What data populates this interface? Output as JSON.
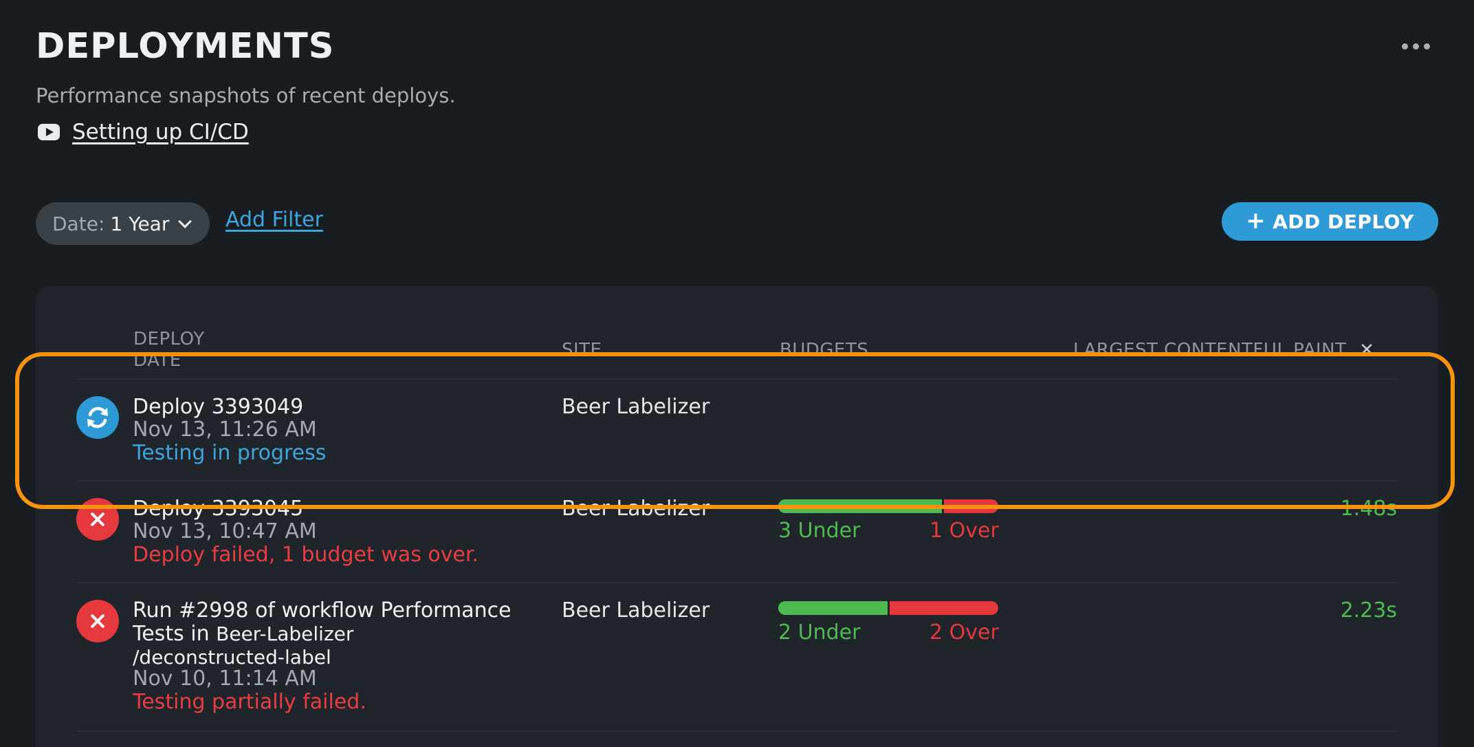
{
  "header": {
    "title": "DEPLOYMENTS",
    "subtitle": "Performance snapshots of recent deploys.",
    "video_link": "Setting up CI/CD",
    "video_icon": "youtube-icon",
    "more_icon": "more-horizontal-icon"
  },
  "filters": {
    "date_label": "Date:",
    "date_value": "1 Year",
    "add_filter": "Add Filter"
  },
  "actions": {
    "add_deploy": "ADD DEPLOY",
    "add_deploy_plus": "+"
  },
  "table": {
    "headers": {
      "deploy_line1": "DEPLOY",
      "deploy_line2": "DATE",
      "site": "SITE",
      "budgets": "BUDGETS",
      "lcp": "LARGEST CONTENTFUL PAINT",
      "lcp_sort_icon": "close-icon"
    },
    "rows": [
      {
        "status_icon": "refresh-icon",
        "status_color": "#2e9bd6",
        "name": "Deploy 3393049",
        "date": "Nov 13, 11:26 AM",
        "status_text": "Testing in progress",
        "site": "Beer Labelizer"
      },
      {
        "status_icon": "error-x-icon",
        "status_color": "#e5393e",
        "name": "Deploy 3393045",
        "date": "Nov 13, 10:47 AM",
        "status_text": "Deploy failed, 1 budget was over.",
        "site": "Beer Labelizer",
        "budgets": {
          "under": 3,
          "over": 1,
          "under_label": "3 Under",
          "over_label": "1 Over"
        },
        "lcp": "1.48s"
      },
      {
        "status_icon": "error-x-icon",
        "status_color": "#e5393e",
        "name_line1": "Run #2998 of workflow Performance",
        "name_line2": "Tests in",
        "repo": "Beer-Labelizer",
        "branch": "/deconstructed-label",
        "date": "Nov 10, 11:14 AM",
        "status_text": "Testing partially failed.",
        "site": "Beer Labelizer",
        "budgets": {
          "under": 2,
          "over": 2,
          "under_label": "2 Under",
          "over_label": "2 Over"
        },
        "lcp": "2.23s"
      }
    ]
  },
  "colors": {
    "accent_blue": "#2e9bd6",
    "success_green": "#4dbb4f",
    "error_red": "#e5393e",
    "highlight_orange": "#f7930e"
  }
}
